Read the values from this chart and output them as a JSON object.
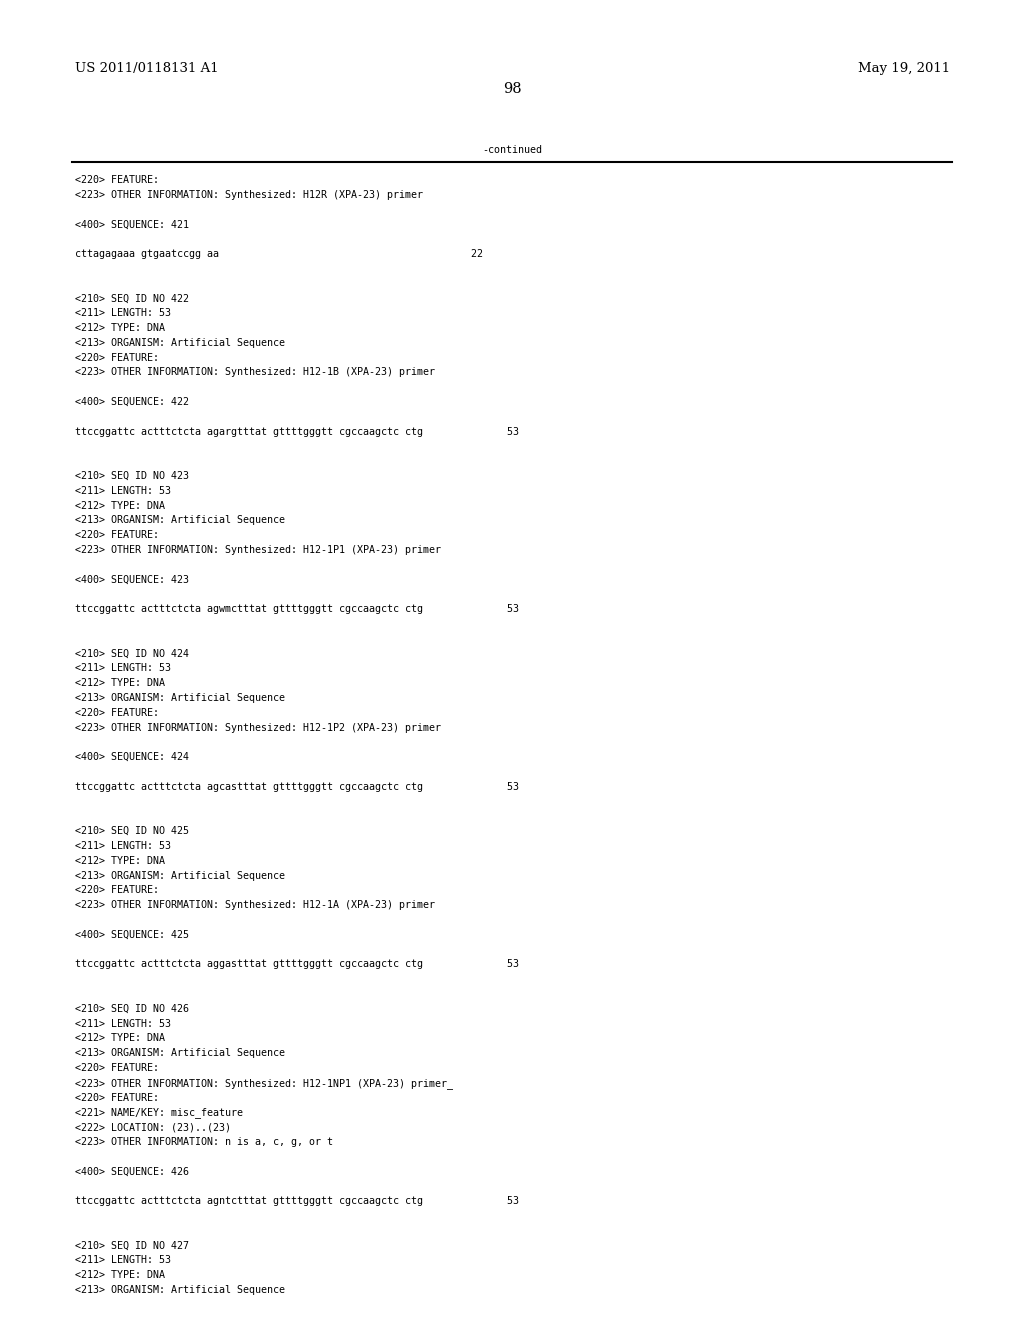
{
  "header_left": "US 2011/0118131 A1",
  "header_right": "May 19, 2011",
  "page_number": "98",
  "continued_text": "-continued",
  "background_color": "#ffffff",
  "text_color": "#000000",
  "font_size_header": 9.5,
  "font_size_page": 10.5,
  "font_size_mono": 7.2,
  "lines": [
    "<220> FEATURE:",
    "<223> OTHER INFORMATION: Synthesized: H12R (XPA-23) primer",
    "",
    "<400> SEQUENCE: 421",
    "",
    "cttagagaaa gtgaatccgg aa                                          22",
    "",
    "",
    "<210> SEQ ID NO 422",
    "<211> LENGTH: 53",
    "<212> TYPE: DNA",
    "<213> ORGANISM: Artificial Sequence",
    "<220> FEATURE:",
    "<223> OTHER INFORMATION: Synthesized: H12-1B (XPA-23) primer",
    "",
    "<400> SEQUENCE: 422",
    "",
    "ttccggattc actttctcta agargtttat gttttgggtt cgccaagctc ctg              53",
    "",
    "",
    "<210> SEQ ID NO 423",
    "<211> LENGTH: 53",
    "<212> TYPE: DNA",
    "<213> ORGANISM: Artificial Sequence",
    "<220> FEATURE:",
    "<223> OTHER INFORMATION: Synthesized: H12-1P1 (XPA-23) primer",
    "",
    "<400> SEQUENCE: 423",
    "",
    "ttccggattc actttctcta agwmctttat gttttgggtt cgccaagctc ctg              53",
    "",
    "",
    "<210> SEQ ID NO 424",
    "<211> LENGTH: 53",
    "<212> TYPE: DNA",
    "<213> ORGANISM: Artificial Sequence",
    "<220> FEATURE:",
    "<223> OTHER INFORMATION: Synthesized: H12-1P2 (XPA-23) primer",
    "",
    "<400> SEQUENCE: 424",
    "",
    "ttccggattc actttctcta agcastttat gttttgggtt cgccaagctc ctg              53",
    "",
    "",
    "<210> SEQ ID NO 425",
    "<211> LENGTH: 53",
    "<212> TYPE: DNA",
    "<213> ORGANISM: Artificial Sequence",
    "<220> FEATURE:",
    "<223> OTHER INFORMATION: Synthesized: H12-1A (XPA-23) primer",
    "",
    "<400> SEQUENCE: 425",
    "",
    "ttccggattc actttctcta aggastttat gttttgggtt cgccaagctc ctg              53",
    "",
    "",
    "<210> SEQ ID NO 426",
    "<211> LENGTH: 53",
    "<212> TYPE: DNA",
    "<213> ORGANISM: Artificial Sequence",
    "<220> FEATURE:",
    "<223> OTHER INFORMATION: Synthesized: H12-1NP1 (XPA-23) primer_",
    "<220> FEATURE:",
    "<221> NAME/KEY: misc_feature",
    "<222> LOCATION: (23)..(23)",
    "<223> OTHER INFORMATION: n is a, c, g, or t",
    "",
    "<400> SEQUENCE: 426",
    "",
    "ttccggattc actttctcta agntctttat gttttgggtt cgccaagctc ctg              53",
    "",
    "",
    "<210> SEQ ID NO 427",
    "<211> LENGTH: 53",
    "<212> TYPE: DNA",
    "<213> ORGANISM: Artificial Sequence"
  ]
}
